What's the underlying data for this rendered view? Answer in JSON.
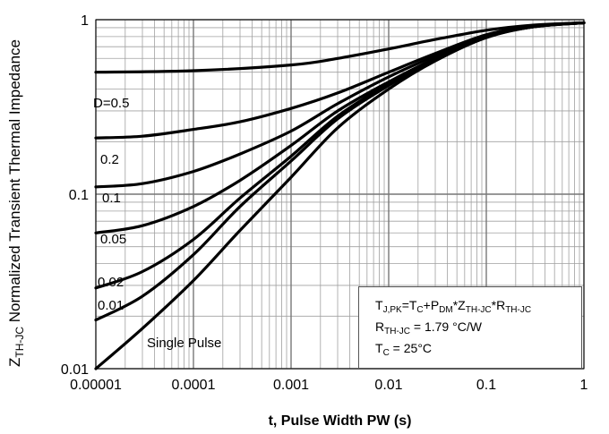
{
  "chart_data": {
    "type": "line",
    "x_scale": "log",
    "y_scale": "log",
    "xlim": [
      1e-05,
      1
    ],
    "ylim": [
      0.01,
      1
    ],
    "grid": true,
    "xlabel": "t, Pulse Width PW (s)",
    "ylabel": {
      "main": "Z",
      "sub": "TH-JC",
      "rest": " Normalized Transient Thermal Impedance"
    },
    "x_tick_labels": [
      "0.00001",
      "0.0001",
      "0.001",
      "0.01",
      "0.1",
      "1"
    ],
    "y_tick_labels": [
      "0.01",
      "0.1",
      "1"
    ],
    "series": [
      {
        "name": "D=0.5",
        "x": [
          1e-05,
          0.0001,
          0.001,
          0.003,
          0.01,
          0.03,
          0.1,
          0.3,
          1
        ],
        "y": [
          0.5,
          0.51,
          0.55,
          0.6,
          0.68,
          0.77,
          0.87,
          0.93,
          0.96
        ]
      },
      {
        "name": "0.2",
        "x": [
          1e-05,
          3e-05,
          0.0001,
          0.0003,
          0.001,
          0.003,
          0.01,
          0.03,
          0.1,
          0.3,
          1
        ],
        "y": [
          0.21,
          0.215,
          0.235,
          0.26,
          0.31,
          0.38,
          0.5,
          0.64,
          0.82,
          0.92,
          0.96
        ]
      },
      {
        "name": "0.1",
        "x": [
          1e-05,
          3e-05,
          0.0001,
          0.0003,
          0.001,
          0.003,
          0.01,
          0.03,
          0.1,
          0.3,
          1
        ],
        "y": [
          0.11,
          0.115,
          0.135,
          0.17,
          0.23,
          0.33,
          0.47,
          0.62,
          0.81,
          0.92,
          0.96
        ]
      },
      {
        "name": "0.05",
        "x": [
          1e-05,
          3e-05,
          0.0001,
          0.0003,
          0.001,
          0.003,
          0.01,
          0.03,
          0.1,
          0.3,
          1
        ],
        "y": [
          0.06,
          0.066,
          0.085,
          0.12,
          0.19,
          0.3,
          0.44,
          0.6,
          0.8,
          0.91,
          0.96
        ]
      },
      {
        "name": "0.02",
        "x": [
          1e-05,
          3e-05,
          0.0001,
          0.0003,
          0.001,
          0.003,
          0.01,
          0.03,
          0.1,
          0.3,
          1
        ],
        "y": [
          0.029,
          0.036,
          0.055,
          0.095,
          0.165,
          0.28,
          0.43,
          0.6,
          0.8,
          0.91,
          0.96
        ]
      },
      {
        "name": "0.01",
        "x": [
          1e-05,
          3e-05,
          0.0001,
          0.0003,
          0.001,
          0.003,
          0.01,
          0.03,
          0.1,
          0.3,
          1
        ],
        "y": [
          0.019,
          0.026,
          0.045,
          0.085,
          0.155,
          0.27,
          0.42,
          0.59,
          0.79,
          0.91,
          0.96
        ]
      },
      {
        "name": "Single Pulse",
        "x": [
          1e-05,
          3e-05,
          0.0001,
          0.0003,
          0.001,
          0.003,
          0.01,
          0.03,
          0.1,
          0.3,
          1
        ],
        "y": [
          0.0095,
          0.017,
          0.032,
          0.062,
          0.125,
          0.24,
          0.4,
          0.58,
          0.79,
          0.91,
          0.96
        ]
      }
    ],
    "annotations": {
      "line1": {
        "a": "T",
        "a_sub": "J,PK",
        "b": "=T",
        "b_sub": "C",
        "c": "+P",
        "c_sub": "DM",
        "d": "*Z",
        "d_sub": "TH-JC",
        "e": "*R",
        "e_sub": "TH-JC"
      },
      "line2": {
        "a": "R",
        "a_sub": "TH-JC",
        "b": " = 1.79 °C/W"
      },
      "line3": {
        "a": "T",
        "a_sub": "C",
        "b": " = 25°C"
      }
    }
  }
}
